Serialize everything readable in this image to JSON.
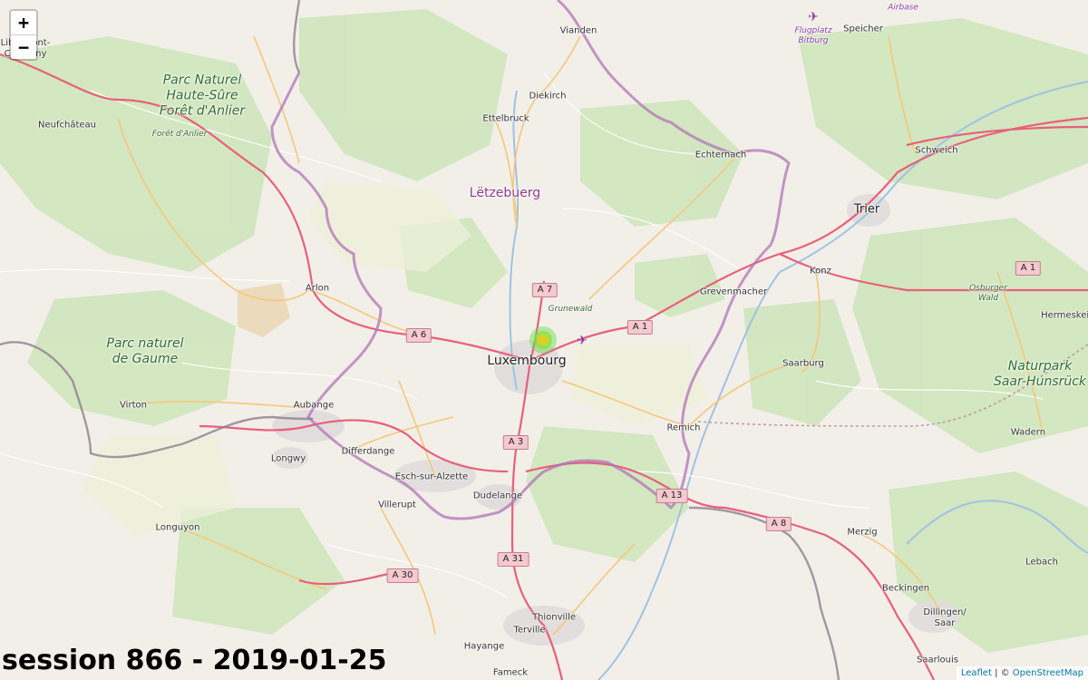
{
  "map": {
    "zoom_in_label": "+",
    "zoom_out_label": "−",
    "caption": "session 866 - 2019-01-25",
    "attribution": {
      "leaflet": "Leaflet",
      "separator": " | © ",
      "osm": "OpenStreetMap"
    },
    "country_label": "Lëtzebuerg",
    "cities": [
      "Luxembourg",
      "Trier"
    ],
    "towns": [
      "Vianden",
      "Diekirch",
      "Ettelbruck",
      "Echternach",
      "Speicher",
      "Schweich",
      "Konz",
      "Grevenmacher",
      "Arlon",
      "Neufchâteau",
      "Virton",
      "Aubange",
      "Longwy",
      "Differdange",
      "Esch-sur-Alzette",
      "Dudelange",
      "Villerupt",
      "Longuyon",
      "Remich",
      "Saarburg",
      "Hermeskeil",
      "Wadern",
      "Merzig",
      "Lebach",
      "Beckingen",
      "Dillingen/\nSaar",
      "Saarlouis",
      "Thionville",
      "Terville",
      "Hayange",
      "Fameck",
      "Libramont-\nChevigny"
    ],
    "parks": [
      "Parc Naturel\nHaute-Sûre\nForêt d'Anlier",
      "Parc naturel\nde Gaume",
      "Naturpark\nSaar-Hunsrück"
    ],
    "forests": [
      "Forêt d'Anlier",
      "Grunewald",
      "Osburger\nWald"
    ],
    "airports": [
      "Flugplatz\nBitburg",
      "Airbase"
    ],
    "roads": [
      "A 7",
      "A 6",
      "A 1",
      "A 1",
      "A 3",
      "A 13",
      "A 8",
      "A 31",
      "A 30"
    ],
    "heat_marker_color": "#e0d020",
    "heat_halo_color": "#66dd44"
  }
}
